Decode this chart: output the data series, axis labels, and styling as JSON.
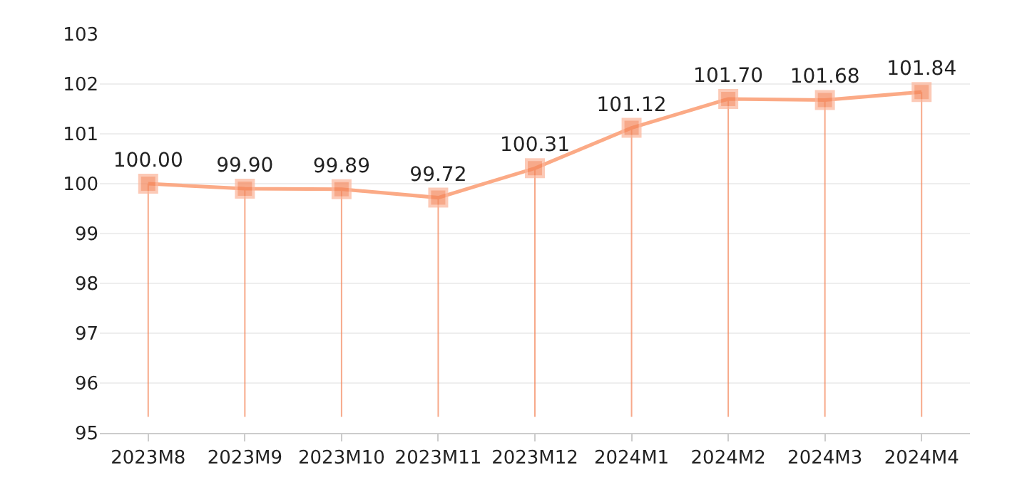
{
  "chart_data": {
    "type": "line",
    "categories": [
      "2023M8",
      "2023M9",
      "2023M10",
      "2023M11",
      "2023M12",
      "2024M1",
      "2024M2",
      "2024M3",
      "2024M4"
    ],
    "series": [
      {
        "color": "#fbaa86",
        "values": [
          100.0,
          99.9,
          99.89,
          99.72,
          100.31,
          101.12,
          101.7,
          101.68,
          101.84
        ],
        "value_labels": [
          "100.00",
          "99.90",
          "99.89",
          "99.72",
          "100.31",
          "101.12",
          "101.70",
          "101.68",
          "101.84"
        ]
      }
    ],
    "ylim": [
      95,
      103
    ],
    "yticks": [
      95,
      96,
      97,
      98,
      99,
      100,
      101,
      102,
      103
    ],
    "grid": true,
    "legend": false,
    "marker": "square",
    "line_style": "solid"
  }
}
